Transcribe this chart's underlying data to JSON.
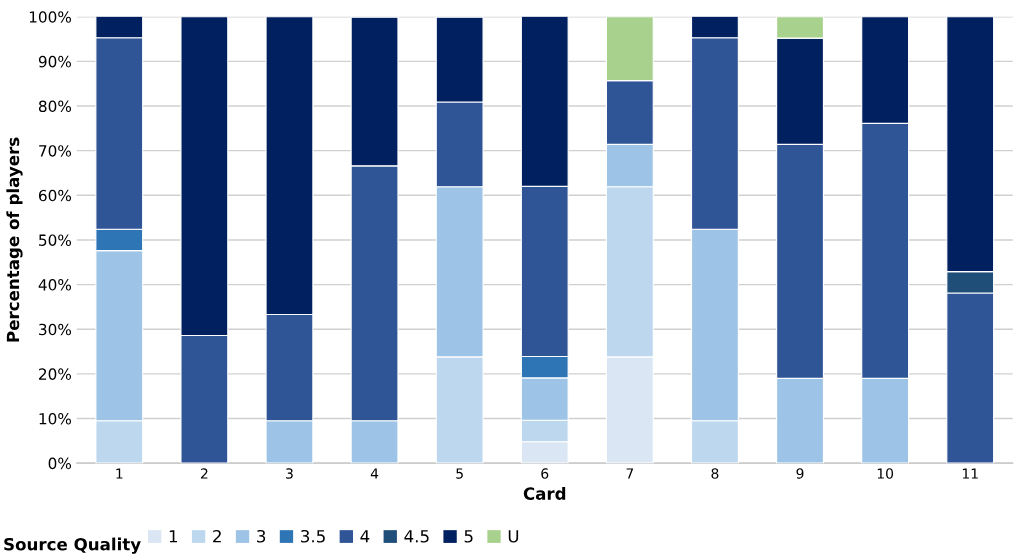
{
  "chart_data": {
    "type": "bar",
    "stacked": true,
    "xlabel": "Card",
    "ylabel": "Percentage of players",
    "legend_title": "Source Quality",
    "categories": [
      "1",
      "2",
      "3",
      "4",
      "5",
      "6",
      "7",
      "8",
      "9",
      "10",
      "11"
    ],
    "series": [
      {
        "name": "1",
        "color": "#dae6f3",
        "values": [
          null,
          null,
          null,
          null,
          null,
          4.8,
          23.8,
          null,
          null,
          null,
          null
        ]
      },
      {
        "name": "2",
        "color": "#bdd7ee",
        "values": [
          9.5,
          null,
          null,
          null,
          23.8,
          4.8,
          38.1,
          9.5,
          null,
          null,
          null
        ]
      },
      {
        "name": "3",
        "color": "#9dc3e6",
        "values": [
          38.1,
          null,
          9.5,
          9.5,
          38.1,
          9.5,
          9.5,
          42.9,
          19.0,
          19.0,
          null
        ]
      },
      {
        "name": "3.5",
        "color": "#2e75b6",
        "values": [
          4.8,
          null,
          null,
          null,
          null,
          4.8,
          null,
          null,
          null,
          null,
          null
        ]
      },
      {
        "name": "4",
        "color": "#2f5597",
        "values": [
          42.9,
          28.6,
          23.8,
          57.1,
          19.0,
          38.1,
          14.3,
          42.9,
          52.4,
          57.1,
          38.1
        ]
      },
      {
        "name": "4.5",
        "color": "#1f4e79",
        "values": [
          null,
          null,
          null,
          null,
          null,
          null,
          null,
          null,
          null,
          null,
          4.8
        ]
      },
      {
        "name": "5",
        "color": "#002060",
        "values": [
          4.8,
          71.4,
          66.7,
          33.3,
          19.0,
          38.1,
          null,
          4.8,
          23.8,
          23.9,
          57.1
        ]
      },
      {
        "name": "U",
        "color": "#a9d18e",
        "values": [
          null,
          null,
          null,
          null,
          null,
          null,
          14.3,
          null,
          4.8,
          null,
          null
        ]
      }
    ],
    "ylim": [
      0,
      100
    ],
    "yticks": [
      {
        "value": 0,
        "label": "0%"
      },
      {
        "value": 10,
        "label": "10%"
      },
      {
        "value": 20,
        "label": "20%"
      },
      {
        "value": 30,
        "label": "30%"
      },
      {
        "value": 40,
        "label": "40%"
      },
      {
        "value": 50,
        "label": "50%"
      },
      {
        "value": 60,
        "label": "60%"
      },
      {
        "value": 70,
        "label": "70%"
      },
      {
        "value": 80,
        "label": "80%"
      },
      {
        "value": 90,
        "label": "90%"
      },
      {
        "value": 100,
        "label": "100%"
      }
    ],
    "grid": "y",
    "legend": "bottom"
  }
}
